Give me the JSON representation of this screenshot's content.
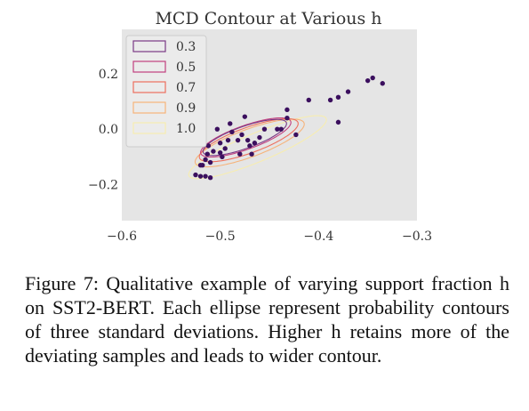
{
  "chart_data": {
    "type": "scatter",
    "title": "MCD Contour at Various h",
    "xlabel": "",
    "ylabel": "",
    "xlim": [
      -0.6,
      -0.3
    ],
    "ylim": [
      -0.33,
      0.36
    ],
    "grid": false,
    "background": "#e5e5e5",
    "xticks": [
      {
        "value": -0.6,
        "label": "−0.6"
      },
      {
        "value": -0.5,
        "label": "−0.5"
      },
      {
        "value": -0.4,
        "label": "−0.4"
      },
      {
        "value": -0.3,
        "label": "−0.3"
      }
    ],
    "yticks": [
      {
        "value": 0.2,
        "label": "0.2"
      },
      {
        "value": 0.0,
        "label": "0.0"
      },
      {
        "value": -0.2,
        "label": "−0.2"
      }
    ],
    "legend": {
      "placement": "top-left",
      "entries": [
        {
          "label": "0.3",
          "color": "#7a3a86"
        },
        {
          "label": "0.5",
          "color": "#c2407f"
        },
        {
          "label": "0.7",
          "color": "#ed6f5e"
        },
        {
          "label": "0.9",
          "color": "#f6b37a"
        },
        {
          "label": "1.0",
          "color": "#f7edb0"
        }
      ]
    },
    "contours": [
      {
        "h": "0.3",
        "color": "#7a3a86",
        "cx": -0.475,
        "cy": -0.03,
        "a": 0.074,
        "b": 0.024,
        "angle_deg": 60
      },
      {
        "h": "0.5",
        "color": "#c2407f",
        "cx": -0.474,
        "cy": -0.03,
        "a": 0.08,
        "b": 0.026,
        "angle_deg": 60
      },
      {
        "h": "0.7",
        "color": "#ed6f5e",
        "cx": -0.471,
        "cy": -0.04,
        "a": 0.088,
        "b": 0.028,
        "angle_deg": 60
      },
      {
        "h": "0.9",
        "color": "#f6b37a",
        "cx": -0.47,
        "cy": -0.05,
        "a": 0.098,
        "b": 0.03,
        "angle_deg": 60
      },
      {
        "h": "1.0",
        "color": "#f7edb0",
        "cx": -0.462,
        "cy": -0.065,
        "a": 0.13,
        "b": 0.03,
        "angle_deg": 60
      }
    ],
    "points_color": "#3b0f5e",
    "points": [
      [
        -0.335,
        0.165
      ],
      [
        -0.345,
        0.185
      ],
      [
        -0.35,
        0.175
      ],
      [
        -0.37,
        0.135
      ],
      [
        -0.38,
        0.115
      ],
      [
        -0.388,
        0.105
      ],
      [
        -0.38,
        0.025
      ],
      [
        -0.41,
        0.105
      ],
      [
        -0.423,
        -0.02
      ],
      [
        -0.432,
        0.04
      ],
      [
        -0.438,
        0.0
      ],
      [
        -0.442,
        0.0
      ],
      [
        -0.432,
        0.07
      ],
      [
        -0.455,
        0.0
      ],
      [
        -0.46,
        -0.03
      ],
      [
        -0.465,
        -0.05
      ],
      [
        -0.47,
        -0.06
      ],
      [
        -0.472,
        -0.04
      ],
      [
        -0.468,
        -0.09
      ],
      [
        -0.478,
        -0.02
      ],
      [
        -0.482,
        -0.04
      ],
      [
        -0.475,
        0.045
      ],
      [
        -0.48,
        -0.09
      ],
      [
        -0.488,
        -0.01
      ],
      [
        -0.49,
        0.02
      ],
      [
        -0.492,
        -0.04
      ],
      [
        -0.495,
        -0.07
      ],
      [
        -0.498,
        -0.1
      ],
      [
        -0.5,
        -0.05
      ],
      [
        -0.5,
        -0.085
      ],
      [
        -0.503,
        0.0
      ],
      [
        -0.507,
        -0.08
      ],
      [
        -0.51,
        -0.12
      ],
      [
        -0.513,
        -0.09
      ],
      [
        -0.515,
        -0.11
      ],
      [
        -0.518,
        -0.13
      ],
      [
        -0.52,
        -0.13
      ],
      [
        -0.515,
        -0.17
      ],
      [
        -0.52,
        -0.17
      ],
      [
        -0.525,
        -0.165
      ],
      [
        -0.512,
        -0.06
      ],
      [
        -0.51,
        -0.175
      ]
    ]
  },
  "caption": "Figure 7: Qualitative example of varying support fraction h on SST2-BERT. Each ellipse represent probability contours of three standard deviations. Higher h retains more of the deviating samples and leads to wider contour."
}
